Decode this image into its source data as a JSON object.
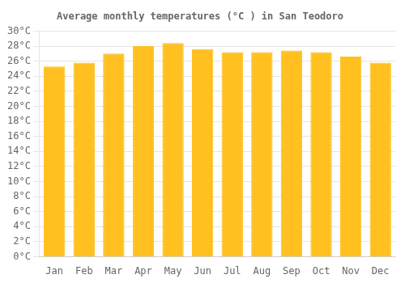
{
  "chart_data": {
    "type": "bar",
    "title": "Average monthly temperatures (°C ) in San Teodoro",
    "categories": [
      "Jan",
      "Feb",
      "Mar",
      "Apr",
      "May",
      "Jun",
      "Jul",
      "Aug",
      "Sep",
      "Oct",
      "Nov",
      "Dec"
    ],
    "values": [
      25.3,
      25.8,
      27.0,
      28.0,
      28.4,
      27.6,
      27.2,
      27.2,
      27.4,
      27.2,
      26.6,
      25.8
    ],
    "color": "#FFC020",
    "ylim": [
      0,
      30
    ],
    "yticks": [
      {
        "value": 0,
        "label": "0°C"
      },
      {
        "value": 2,
        "label": "2°C"
      },
      {
        "value": 4,
        "label": "4°C"
      },
      {
        "value": 6,
        "label": "6°C"
      },
      {
        "value": 8,
        "label": "8°C"
      },
      {
        "value": 10,
        "label": "10°C"
      },
      {
        "value": 12,
        "label": "12°C"
      },
      {
        "value": 14,
        "label": "14°C"
      },
      {
        "value": 16,
        "label": "16°C"
      },
      {
        "value": 18,
        "label": "18°C"
      },
      {
        "value": 20,
        "label": "20°C"
      },
      {
        "value": 22,
        "label": "22°C"
      },
      {
        "value": 24,
        "label": "24°C"
      },
      {
        "value": 26,
        "label": "26°C"
      },
      {
        "value": 28,
        "label": "28°C"
      },
      {
        "value": 30,
        "label": "30°C"
      }
    ],
    "grid": true
  }
}
